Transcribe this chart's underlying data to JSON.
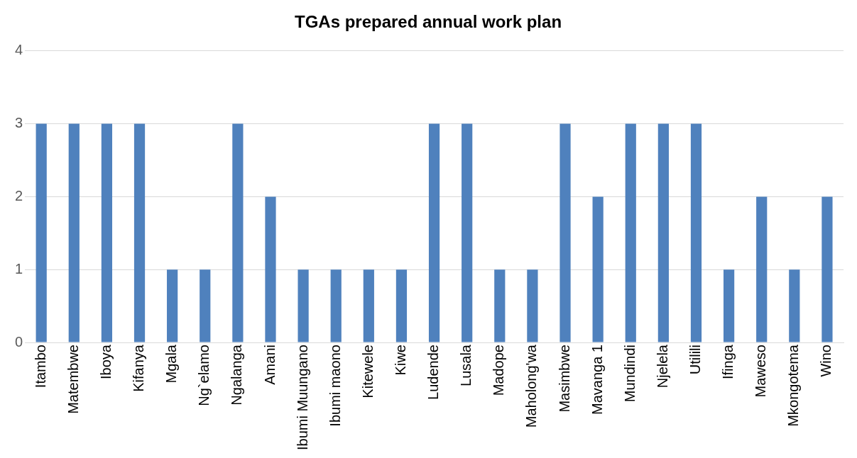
{
  "chart_data": {
    "type": "bar",
    "title": "TGAs prepared annual work plan",
    "categories": [
      "Itambo",
      "Matembwe",
      "Iboya",
      "Kifanya",
      "Mgala",
      "Ng`elamo",
      "Ngalanga",
      "Amani",
      "Ibumi Muungano",
      "Ibumi maono",
      "Kitewele",
      "Kiwe",
      "Ludende",
      "Lusala",
      "Madope",
      "Maholong'wa",
      "Masimbwe",
      "Mavanga 1",
      "Mundindi",
      "Njelela",
      "Utilili",
      "Ifinga",
      "Maweso",
      "Mkongotema",
      "Wino"
    ],
    "values": [
      3,
      3,
      3,
      3,
      1,
      1,
      3,
      2,
      1,
      1,
      1,
      1,
      3,
      3,
      1,
      1,
      3,
      2,
      3,
      3,
      3,
      1,
      2,
      1,
      2
    ],
    "color": "#4f81bd",
    "ylim": [
      0,
      4
    ],
    "yticks": [
      0,
      1,
      2,
      3,
      4
    ],
    "grid": "y",
    "legend": false
  }
}
